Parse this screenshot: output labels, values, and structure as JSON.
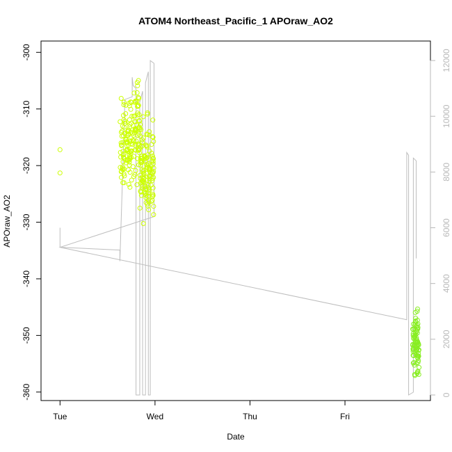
{
  "chart_data": {
    "type": "scatter",
    "title": "ATOM4 Northeast_Pacific_1 APOraw_AO2",
    "xlabel": "Date",
    "ylabel": "APOraw_AO2",
    "x_ticks": [
      "Tue",
      "Wed",
      "Thu",
      "Fri"
    ],
    "x_range_days": [
      -0.2,
      3.9
    ],
    "y_ticks": [
      -300,
      -310,
      -320,
      -330,
      -340,
      -350,
      -360
    ],
    "ylim": [
      -361.5,
      -298
    ],
    "y2_ticks": [
      0,
      2000,
      4000,
      6000,
      8000,
      10000,
      12000
    ],
    "y2lim": [
      -200,
      12700
    ],
    "colors": {
      "points_early": "#ccff00",
      "points_late": "#88ee22",
      "line": "#bebebe",
      "axis": "#000000",
      "axis_right": "#b8b8b8"
    },
    "series": [
      {
        "kind": "points",
        "color": "#ccff00",
        "clusters": [
          {
            "x": [
              0.0,
              0.0
            ],
            "y": [
              -317.2,
              -321.3
            ],
            "n": 2
          },
          {
            "x": [
              0.63,
              0.78
            ],
            "y": [
              -305.5,
              -326.5
            ],
            "n": 110
          },
          {
            "x": [
              0.78,
              0.84
            ],
            "y": [
              -299.5,
              -326
            ],
            "n": 50
          },
          {
            "x": [
              0.84,
              0.99
            ],
            "y": [
              -309,
              -333
            ],
            "n": 130
          }
        ]
      },
      {
        "kind": "points",
        "color": "#88ee22",
        "clusters": [
          {
            "x": [
              3.71,
              3.78
            ],
            "y": [
              -343.8,
              -359.8
            ],
            "n": 90
          }
        ]
      },
      {
        "kind": "line",
        "color": "#bebebe",
        "x": [
          0.0,
          0.0,
          0.63,
          0.63,
          0.68,
          0.68,
          0.76,
          0.76,
          0.77,
          0.8,
          0.8,
          0.84,
          0.84,
          0.87,
          0.87,
          0.9,
          0.9,
          0.93,
          0.93,
          0.95,
          0.95,
          0.99,
          0.99,
          0.0,
          3.65,
          3.65,
          3.67,
          3.67,
          3.72,
          3.72,
          3.75,
          3.75
        ],
        "y": [
          6000,
          5300,
          5200,
          4800,
          10200,
          10600,
          10700,
          11400,
          11100,
          11000,
          0,
          0,
          10500,
          10900,
          0,
          0,
          11200,
          11600,
          0,
          0,
          12000,
          11900,
          6400,
          5300,
          2700,
          8700,
          8600,
          0,
          100,
          8500,
          8400,
          4900
        ]
      }
    ]
  }
}
